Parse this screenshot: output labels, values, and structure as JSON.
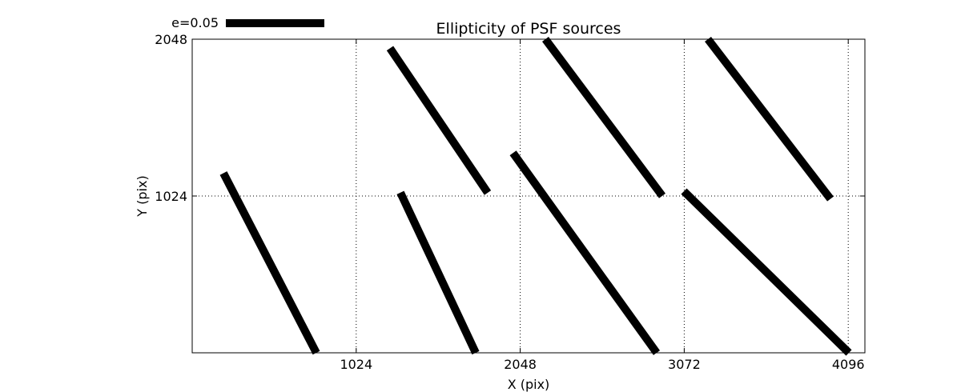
{
  "chart_data": {
    "type": "quiver",
    "title": "Ellipticity of PSF sources",
    "xlabel": "X (pix)",
    "ylabel": "Y (pix)",
    "xlim": [
      0,
      4200
    ],
    "ylim": [
      0,
      2048
    ],
    "xticks": [
      1024,
      2048,
      3072,
      4096
    ],
    "xtick_labels": [
      "1024",
      "2048",
      "3072",
      "4096"
    ],
    "yticks": [
      1024,
      2048
    ],
    "ytick_labels": [
      "1024",
      "2048"
    ],
    "grid": true,
    "legend": {
      "position": "top-left",
      "label": "e=0.05",
      "ellipticity": 0.05
    },
    "segments": [
      {
        "x1": 195,
        "y1": 1173,
        "x2": 775,
        "y2": 0
      },
      {
        "x1": 1300,
        "y1": 1046,
        "x2": 1770,
        "y2": 0
      },
      {
        "x1": 1235,
        "y1": 1989,
        "x2": 1845,
        "y2": 1045
      },
      {
        "x1": 2003,
        "y1": 1305,
        "x2": 2900,
        "y2": 0
      },
      {
        "x1": 2205,
        "y1": 2048,
        "x2": 2935,
        "y2": 1025
      },
      {
        "x1": 3070,
        "y1": 1055,
        "x2": 4100,
        "y2": 0
      },
      {
        "x1": 3220,
        "y1": 2048,
        "x2": 3985,
        "y2": 1005
      }
    ]
  }
}
